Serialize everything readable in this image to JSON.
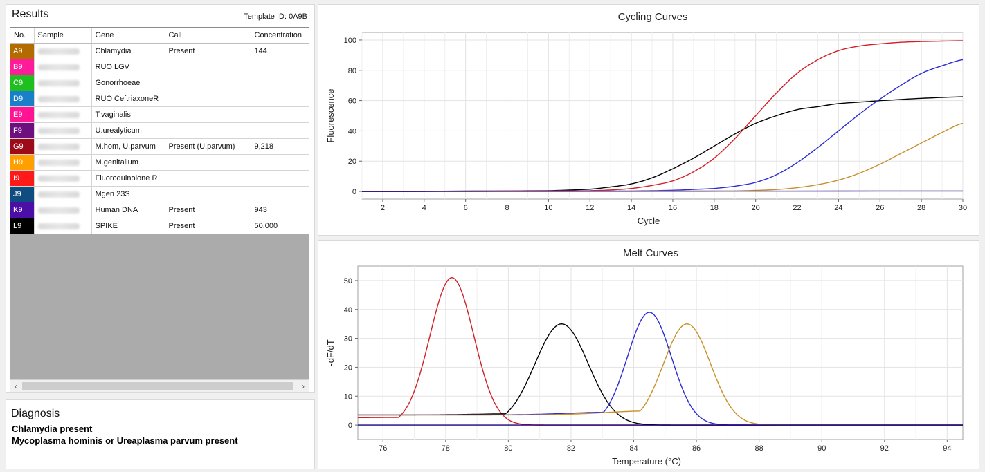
{
  "results": {
    "title": "Results",
    "template_id": "Template ID: 0A9B",
    "columns": [
      "No.",
      "Sample",
      "Gene",
      "Call",
      "Concentration"
    ],
    "rows": [
      {
        "no": "A9",
        "color": "#b36b00",
        "gene": "Chlamydia",
        "call": "Present",
        "concentration": "144"
      },
      {
        "no": "B9",
        "color": "#ff1c9b",
        "gene": "RUO LGV",
        "call": "",
        "concentration": ""
      },
      {
        "no": "C9",
        "color": "#1fbf1f",
        "gene": "Gonorrhoeae",
        "call": "",
        "concentration": ""
      },
      {
        "no": "D9",
        "color": "#1a7fc9",
        "gene": "RUO CeftriaxoneR",
        "call": "",
        "concentration": ""
      },
      {
        "no": "E9",
        "color": "#ff1493",
        "gene": "T.vaginalis",
        "call": "",
        "concentration": ""
      },
      {
        "no": "F9",
        "color": "#6d0f7f",
        "gene": "U.urealyticum",
        "call": "",
        "concentration": ""
      },
      {
        "no": "G9",
        "color": "#9e0b18",
        "gene": "M.hom, U.parvum",
        "call": "Present (U.parvum)",
        "concentration": "9,218"
      },
      {
        "no": "H9",
        "color": "#ff9f00",
        "gene": "M.genitalium",
        "call": "",
        "concentration": ""
      },
      {
        "no": "I9",
        "color": "#ff1a1a",
        "gene": "Fluoroquinolone R",
        "call": "",
        "concentration": ""
      },
      {
        "no": "J9",
        "color": "#0f4c7f",
        "gene": "Mgen 23S",
        "call": "",
        "concentration": ""
      },
      {
        "no": "K9",
        "color": "#4b0fa8",
        "gene": "Human DNA",
        "call": "Present",
        "concentration": "943"
      },
      {
        "no": "L9",
        "color": "#000000",
        "gene": "SPIKE",
        "call": "Present",
        "concentration": "50,000"
      }
    ],
    "scroll_left_icon": "chevron-left-icon",
    "scroll_right_icon": "chevron-right-icon"
  },
  "diagnosis": {
    "title": "Diagnosis",
    "lines": [
      "Chlamydia present",
      "Mycoplasma hominis or Ureaplasma parvum present"
    ]
  },
  "chart_data": [
    {
      "type": "line",
      "title": "Cycling Curves",
      "xlabel": "Cycle",
      "ylabel": "Fluorescence",
      "xlim": [
        1,
        30
      ],
      "ylim": [
        -5,
        105
      ],
      "xticks": [
        2,
        4,
        6,
        8,
        10,
        12,
        14,
        16,
        18,
        20,
        22,
        24,
        26,
        28,
        30
      ],
      "yticks": [
        0,
        20,
        40,
        60,
        80,
        100
      ],
      "grid": true,
      "series": [
        {
          "color": "#000000",
          "x": [
            1,
            10,
            12,
            13,
            14,
            15,
            16,
            17,
            18,
            19,
            20,
            21,
            22,
            23,
            24,
            25,
            26,
            28,
            30
          ],
          "y": [
            0,
            0.5,
            1.5,
            3,
            5,
            9,
            15,
            22,
            30,
            38,
            45,
            50,
            54,
            56,
            58,
            59,
            60,
            61.5,
            62.5
          ]
        },
        {
          "color": "#d21f26",
          "x": [
            1,
            12,
            13,
            14,
            15,
            16,
            17,
            18,
            19,
            20,
            21,
            22,
            23,
            24,
            25,
            26,
            27,
            28,
            30
          ],
          "y": [
            0,
            0.5,
            1,
            2,
            4,
            7,
            13,
            22,
            35,
            50,
            65,
            78,
            87,
            93,
            96,
            97.5,
            98.5,
            99,
            99.5
          ]
        },
        {
          "color": "#2b2bd6",
          "x": [
            1,
            14,
            16,
            18,
            19,
            20,
            21,
            22,
            23,
            24,
            25,
            26,
            27,
            28,
            29,
            30
          ],
          "y": [
            0,
            0.3,
            0.8,
            2,
            3.5,
            6,
            11,
            19,
            29,
            40,
            51,
            61,
            70,
            78,
            83,
            87
          ]
        },
        {
          "color": "#c8902a",
          "x": [
            1,
            19,
            20,
            21,
            22,
            23,
            24,
            25,
            26,
            27,
            28,
            29,
            30
          ],
          "y": [
            0,
            0.3,
            0.7,
            1.3,
            2.5,
            4.5,
            7.5,
            12,
            18,
            25,
            32,
            39,
            45
          ]
        },
        {
          "color": "#1a0080",
          "x": [
            1,
            30
          ],
          "y": [
            0,
            0.3
          ]
        }
      ]
    },
    {
      "type": "line",
      "title": "Melt Curves",
      "xlabel": "Temperature (°C)",
      "ylabel": "-dF/dT",
      "xlim": [
        75.2,
        94.5
      ],
      "ylim": [
        -5,
        55
      ],
      "xticks": [
        76,
        78,
        80,
        82,
        84,
        86,
        88,
        90,
        92,
        94
      ],
      "yticks": [
        0,
        10,
        20,
        30,
        40,
        50
      ],
      "grid": true,
      "series": [
        {
          "color": "#d21f26",
          "peak": 78.2,
          "height": 51,
          "width": 0.7,
          "start": 2.5,
          "decay": 1.2
        },
        {
          "color": "#000000",
          "peak": 81.7,
          "height": 35,
          "width": 0.85,
          "start": 3.5,
          "decay": 3.5
        },
        {
          "color": "#2b2bd6",
          "peak": 84.5,
          "height": 39,
          "width": 0.7,
          "start": 3.5,
          "decay": 7.5
        },
        {
          "color": "#c8902a",
          "peak": 85.7,
          "height": 35,
          "width": 0.75,
          "start": 3.5,
          "decay": 11
        },
        {
          "color": "#1a0080",
          "flat": 0
        }
      ]
    }
  ]
}
